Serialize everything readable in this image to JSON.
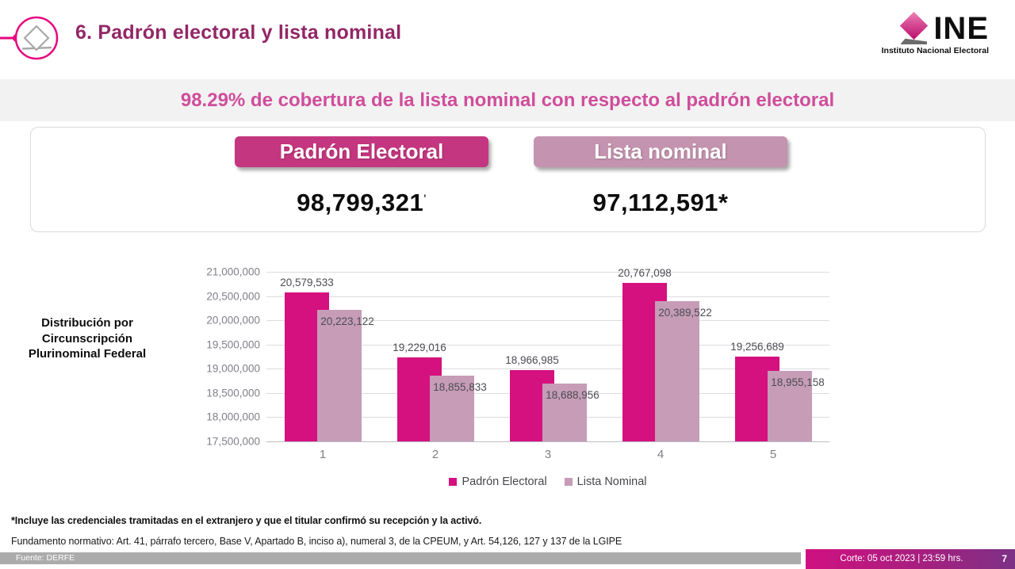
{
  "header": {
    "title": "6. Padrón electoral y lista nominal",
    "logo": {
      "name": "INE",
      "subtitle": "Instituto Nacional Electoral"
    }
  },
  "banner": {
    "text": "98.29% de cobertura de la lista nominal con respecto al padrón electoral"
  },
  "summary": {
    "padron": {
      "label": "Padrón Electoral",
      "value": "98,799,321",
      "mark": "'",
      "color": "#c4367f"
    },
    "lista": {
      "label": "Lista nominal",
      "value": "97,112,591*",
      "color": "#c493af"
    }
  },
  "chart_data": {
    "type": "bar",
    "title": "Distribución por Circunscripción Plurinominal Federal",
    "categories": [
      "1",
      "2",
      "3",
      "4",
      "5"
    ],
    "series": [
      {
        "name": "Padrón Electoral",
        "color": "#d4117e",
        "values": [
          20579533,
          19229016,
          18966985,
          20767098,
          19256689
        ]
      },
      {
        "name": "Lista Nominal",
        "color": "#c69cb7",
        "values": [
          20223122,
          18855833,
          18688956,
          20389522,
          18955158
        ]
      }
    ],
    "ylim": [
      17500000,
      21000000
    ],
    "ytick_step": 500000,
    "grid": true,
    "legend_position": "bottom",
    "xlabel": "",
    "ylabel": ""
  },
  "footnotes": {
    "note1": "*Incluye las credenciales tramitadas en el extranjero y que el titular confirmó su recepción y la activó.",
    "note2": "Fundamento normativo: Art. 41, párrafo tercero, Base V,  Apartado B, inciso a), numeral 3, de la CPEUM, y Art. 54,126, 127 y 137 de la LGIPE"
  },
  "footer": {
    "source": "Fuente: DERFE",
    "cutoff": "Corte: 05 oct 2023 | 23:59 hrs.",
    "page": "7"
  }
}
